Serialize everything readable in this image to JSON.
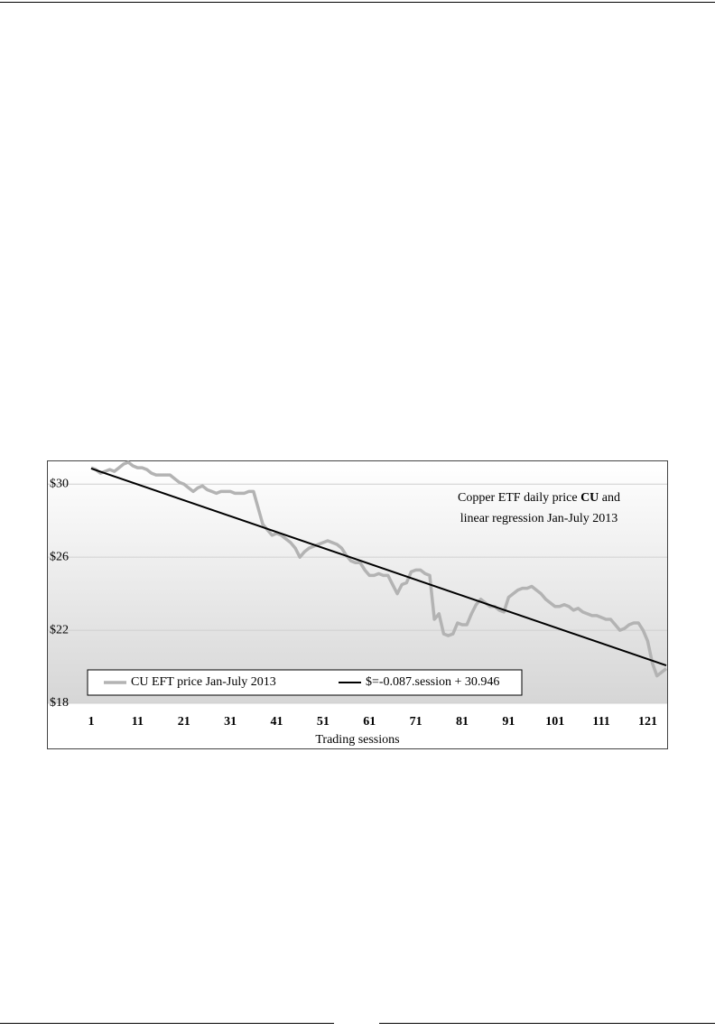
{
  "chart_data": {
    "type": "line",
    "title": [
      "Copper ETF daily price",
      "CU",
      "and",
      "linear regression Jan-July 2013"
    ],
    "xlabel": "Trading sessions",
    "xlim": [
      1,
      125
    ],
    "xticks": [
      1,
      11,
      21,
      31,
      41,
      51,
      61,
      71,
      81,
      91,
      101,
      111,
      121
    ],
    "ylim": [
      18,
      31.2
    ],
    "yticks": [
      {
        "value": 18,
        "label": "$18"
      },
      {
        "value": 22,
        "label": "$22"
      },
      {
        "value": 26,
        "label": "$26"
      },
      {
        "value": 30,
        "label": "$30"
      }
    ],
    "grid": true,
    "legend": "lower left",
    "series": [
      {
        "name": "CU EFT price Jan-July 2013",
        "color": "#b3b3b3",
        "x": [
          1,
          2,
          3,
          4,
          5,
          6,
          7,
          8,
          9,
          10,
          11,
          12,
          13,
          14,
          15,
          16,
          17,
          18,
          19,
          20,
          21,
          22,
          23,
          24,
          25,
          26,
          27,
          28,
          29,
          30,
          31,
          32,
          33,
          34,
          35,
          36,
          37,
          38,
          39,
          40,
          41,
          42,
          43,
          44,
          45,
          46,
          47,
          48,
          49,
          50,
          51,
          52,
          53,
          54,
          55,
          56,
          57,
          58,
          59,
          60,
          61,
          62,
          63,
          64,
          65,
          66,
          67,
          68,
          69,
          70,
          71,
          72,
          73,
          74,
          75,
          76,
          77,
          78,
          79,
          80,
          81,
          82,
          83,
          84,
          85,
          86,
          87,
          88,
          89,
          90,
          91,
          92,
          93,
          94,
          95,
          96,
          97,
          98,
          99,
          100,
          101,
          102,
          103,
          104,
          105,
          106,
          107,
          108,
          109,
          110,
          111,
          112,
          113,
          114,
          115,
          116,
          117,
          118,
          119,
          120,
          121,
          122,
          123,
          124,
          125
        ],
        "values": [
          30.9,
          30.8,
          30.6,
          30.7,
          30.8,
          30.7,
          30.9,
          31.1,
          31.2,
          31.0,
          30.9,
          30.9,
          30.8,
          30.6,
          30.5,
          30.5,
          30.5,
          30.5,
          30.3,
          30.1,
          30.0,
          29.8,
          29.6,
          29.8,
          29.9,
          29.7,
          29.6,
          29.5,
          29.6,
          29.6,
          29.6,
          29.5,
          29.5,
          29.5,
          29.6,
          29.6,
          28.7,
          27.8,
          27.5,
          27.2,
          27.3,
          27.2,
          27.0,
          26.8,
          26.5,
          26.0,
          26.3,
          26.5,
          26.6,
          26.7,
          26.8,
          26.9,
          26.8,
          26.7,
          26.5,
          26.1,
          25.8,
          25.7,
          25.7,
          25.3,
          25.0,
          25.0,
          25.1,
          25.0,
          25.0,
          24.5,
          24.0,
          24.5,
          24.6,
          25.2,
          25.3,
          25.3,
          25.1,
          25.0,
          22.6,
          22.9,
          21.8,
          21.7,
          21.8,
          22.4,
          22.3,
          22.3,
          22.9,
          23.4,
          23.7,
          23.5,
          23.3,
          23.3,
          23.1,
          23.0,
          23.8,
          24.0,
          24.2,
          24.3,
          24.3,
          24.4,
          24.2,
          24.0,
          23.7,
          23.5,
          23.3,
          23.3,
          23.4,
          23.3,
          23.1,
          23.2,
          23.0,
          22.9,
          22.8,
          22.8,
          22.7,
          22.6,
          22.6,
          22.3,
          22.0,
          22.1,
          22.3,
          22.4,
          22.4,
          22.0,
          21.4,
          20.2,
          19.5,
          19.7,
          19.9
        ]
      },
      {
        "name": "$=-0.087.session + 30.946",
        "color": "#000000",
        "x": [
          1,
          125
        ],
        "values": [
          30.859,
          20.071
        ]
      }
    ]
  }
}
